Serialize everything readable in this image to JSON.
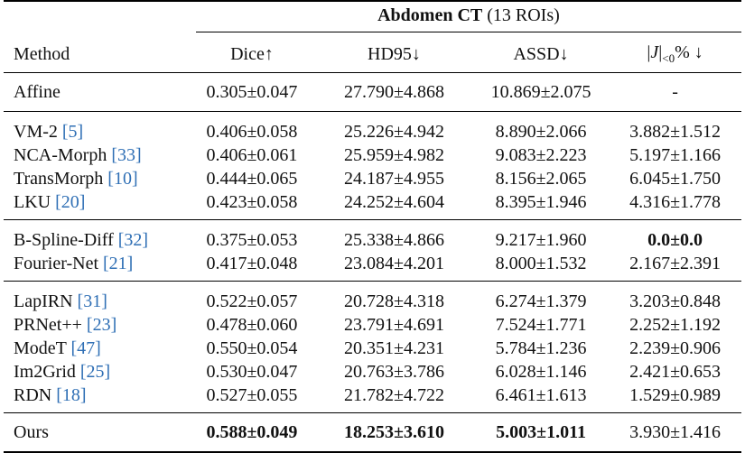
{
  "table": {
    "super_header": {
      "bold": "Abdomen CT",
      "rest": " (13 ROIs)"
    },
    "columns": [
      "Method",
      "Dice↑",
      "HD95↓",
      "ASSD↓"
    ],
    "jac_col": {
      "prefix": "|",
      "j": "J",
      "mid": "|",
      "sub": "<0",
      "suffix": "% ↓"
    },
    "groups": [
      [
        {
          "name": "Affine",
          "ref": "",
          "dice": "0.305±0.047",
          "hd95": "27.790±4.868",
          "assd": "10.869±2.075",
          "jac": "-"
        }
      ],
      [
        {
          "name": "VM-2 ",
          "ref": "[5]",
          "dice": "0.406±0.058",
          "hd95": "25.226±4.942",
          "assd": "8.890±2.066",
          "jac": "3.882±1.512"
        },
        {
          "name": "NCA-Morph ",
          "ref": "[33]",
          "dice": "0.406±0.061",
          "hd95": "25.959±4.982",
          "assd": "9.083±2.223",
          "jac": "5.197±1.166"
        },
        {
          "name": "TransMorph ",
          "ref": "[10]",
          "dice": "0.444±0.065",
          "hd95": "24.187±4.955",
          "assd": "8.156±2.065",
          "jac": "6.045±1.750"
        },
        {
          "name": "LKU ",
          "ref": "[20]",
          "dice": "0.423±0.058",
          "hd95": "24.252±4.604",
          "assd": "8.395±1.946",
          "jac": "4.316±1.778"
        }
      ],
      [
        {
          "name": "B-Spline-Diff ",
          "ref": "[32]",
          "dice": "0.375±0.053",
          "hd95": "25.338±4.866",
          "assd": "9.217±1.960",
          "jac": "0.0±0.0",
          "bold": [
            "jac"
          ]
        },
        {
          "name": "Fourier-Net ",
          "ref": "[21]",
          "dice": "0.417±0.048",
          "hd95": "23.084±4.201",
          "assd": "8.000±1.532",
          "jac": "2.167±2.391"
        }
      ],
      [
        {
          "name": "LapIRN ",
          "ref": "[31]",
          "dice": "0.522±0.057",
          "hd95": "20.728±4.318",
          "assd": "6.274±1.379",
          "jac": "3.203±0.848"
        },
        {
          "name": "PRNet++ ",
          "ref": "[23]",
          "dice": "0.478±0.060",
          "hd95": "23.791±4.691",
          "assd": "7.524±1.771",
          "jac": "2.252±1.192"
        },
        {
          "name": "ModeT ",
          "ref": "[47]",
          "dice": "0.550±0.054",
          "hd95": "20.351±4.231",
          "assd": "5.784±1.236",
          "jac": "2.239±0.906"
        },
        {
          "name": "Im2Grid ",
          "ref": "[25]",
          "dice": "0.530±0.047",
          "hd95": "20.763±3.786",
          "assd": "6.028±1.146",
          "jac": "2.421±0.653"
        },
        {
          "name": "RDN ",
          "ref": "[18]",
          "dice": "0.527±0.055",
          "hd95": "21.782±4.722",
          "assd": "6.461±1.613",
          "jac": "1.529±0.989"
        }
      ],
      [
        {
          "name": "Ours",
          "ref": "",
          "dice": "0.588±0.049",
          "hd95": "18.253±3.610",
          "assd": "5.003±1.011",
          "jac": "3.930±1.416",
          "bold": [
            "dice",
            "hd95",
            "assd"
          ]
        }
      ]
    ]
  }
}
